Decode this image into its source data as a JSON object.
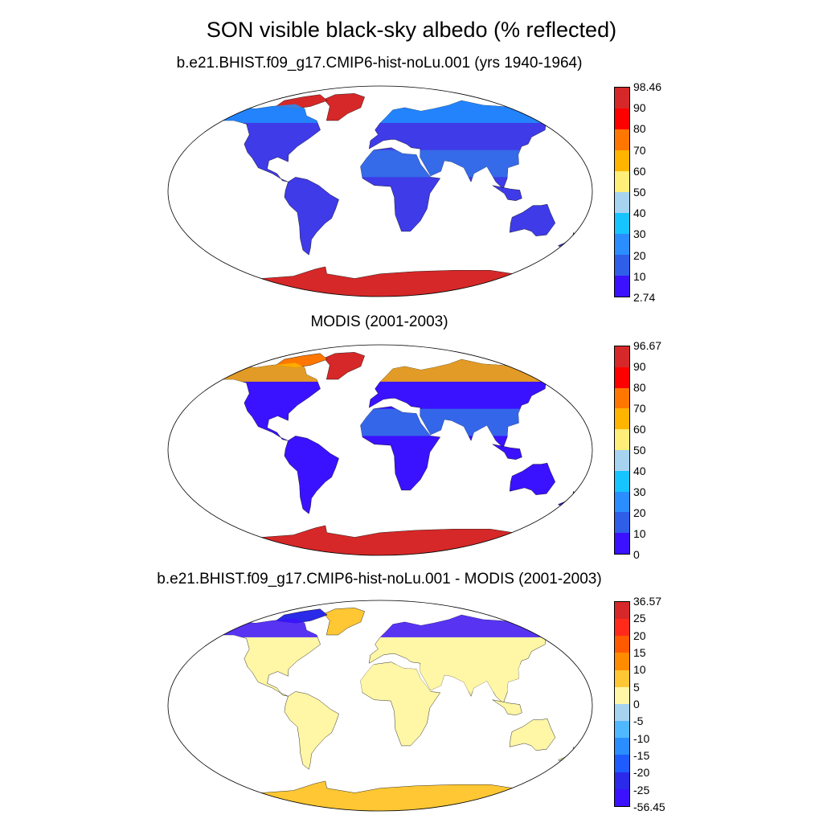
{
  "title": "SON visible black-sky albedo (% reflected)",
  "panels": [
    {
      "subtitle": "b.e21.BHIST.f09_g17.CMIP6-hist-noLu.001 (yrs 1940-1964)",
      "colorbar": {
        "labels": [
          "98.46",
          "90",
          "80",
          "70",
          "60",
          "50",
          "40",
          "30",
          "20",
          "10",
          "2.74"
        ],
        "colors": [
          "#d62828",
          "#ff0000",
          "#ff7700",
          "#ffb400",
          "#ffee77",
          "#a6d3f0",
          "#16c4ff",
          "#2a8eff",
          "#2f5fe8",
          "#3b12ff"
        ]
      },
      "fills": {
        "land_default": "#3f3be8",
        "mid": "#3470e8",
        "north": "#1e90ff",
        "greenland": "#d62828",
        "antarctica": "#d62828",
        "arctic_islands": "#d62828"
      }
    },
    {
      "subtitle": "MODIS (2001-2003)",
      "colorbar": {
        "labels": [
          "96.67",
          "90",
          "80",
          "70",
          "60",
          "50",
          "40",
          "30",
          "20",
          "10",
          "0"
        ],
        "colors": [
          "#d62828",
          "#ff0000",
          "#ff7700",
          "#ffb400",
          "#ffee77",
          "#a6d3f0",
          "#16c4ff",
          "#2a8eff",
          "#2f5fe8",
          "#3b12ff"
        ]
      },
      "fills": {
        "land_default": "#3b12ff",
        "mid": "#3470e8",
        "north": "#ffb400",
        "greenland": "#d62828",
        "antarctica": "#d62828",
        "arctic_islands": "#ff7700"
      }
    },
    {
      "subtitle": "b.e21.BHIST.f09_g17.CMIP6-hist-noLu.001 - MODIS (2001-2003)",
      "colorbar": {
        "labels": [
          "36.57",
          "25",
          "20",
          "15",
          "10",
          "5",
          "0",
          "-5",
          "-10",
          "-15",
          "-20",
          "-25",
          "-56.45"
        ],
        "colors": [
          "#d62828",
          "#ff2a1a",
          "#ff5a00",
          "#ff8c00",
          "#ffc733",
          "#fff6a6",
          "#a6d3f0",
          "#50b8ff",
          "#2a8eff",
          "#1e5cff",
          "#2a2ae8",
          "#3b12ff"
        ]
      },
      "fills": {
        "land_default": "#fff6a6",
        "mid": "#fff6a6",
        "north": "#3b12ff",
        "greenland": "#ffc733",
        "antarctica": "#ffc733",
        "arctic_islands": "#2a2ae8"
      }
    }
  ]
}
